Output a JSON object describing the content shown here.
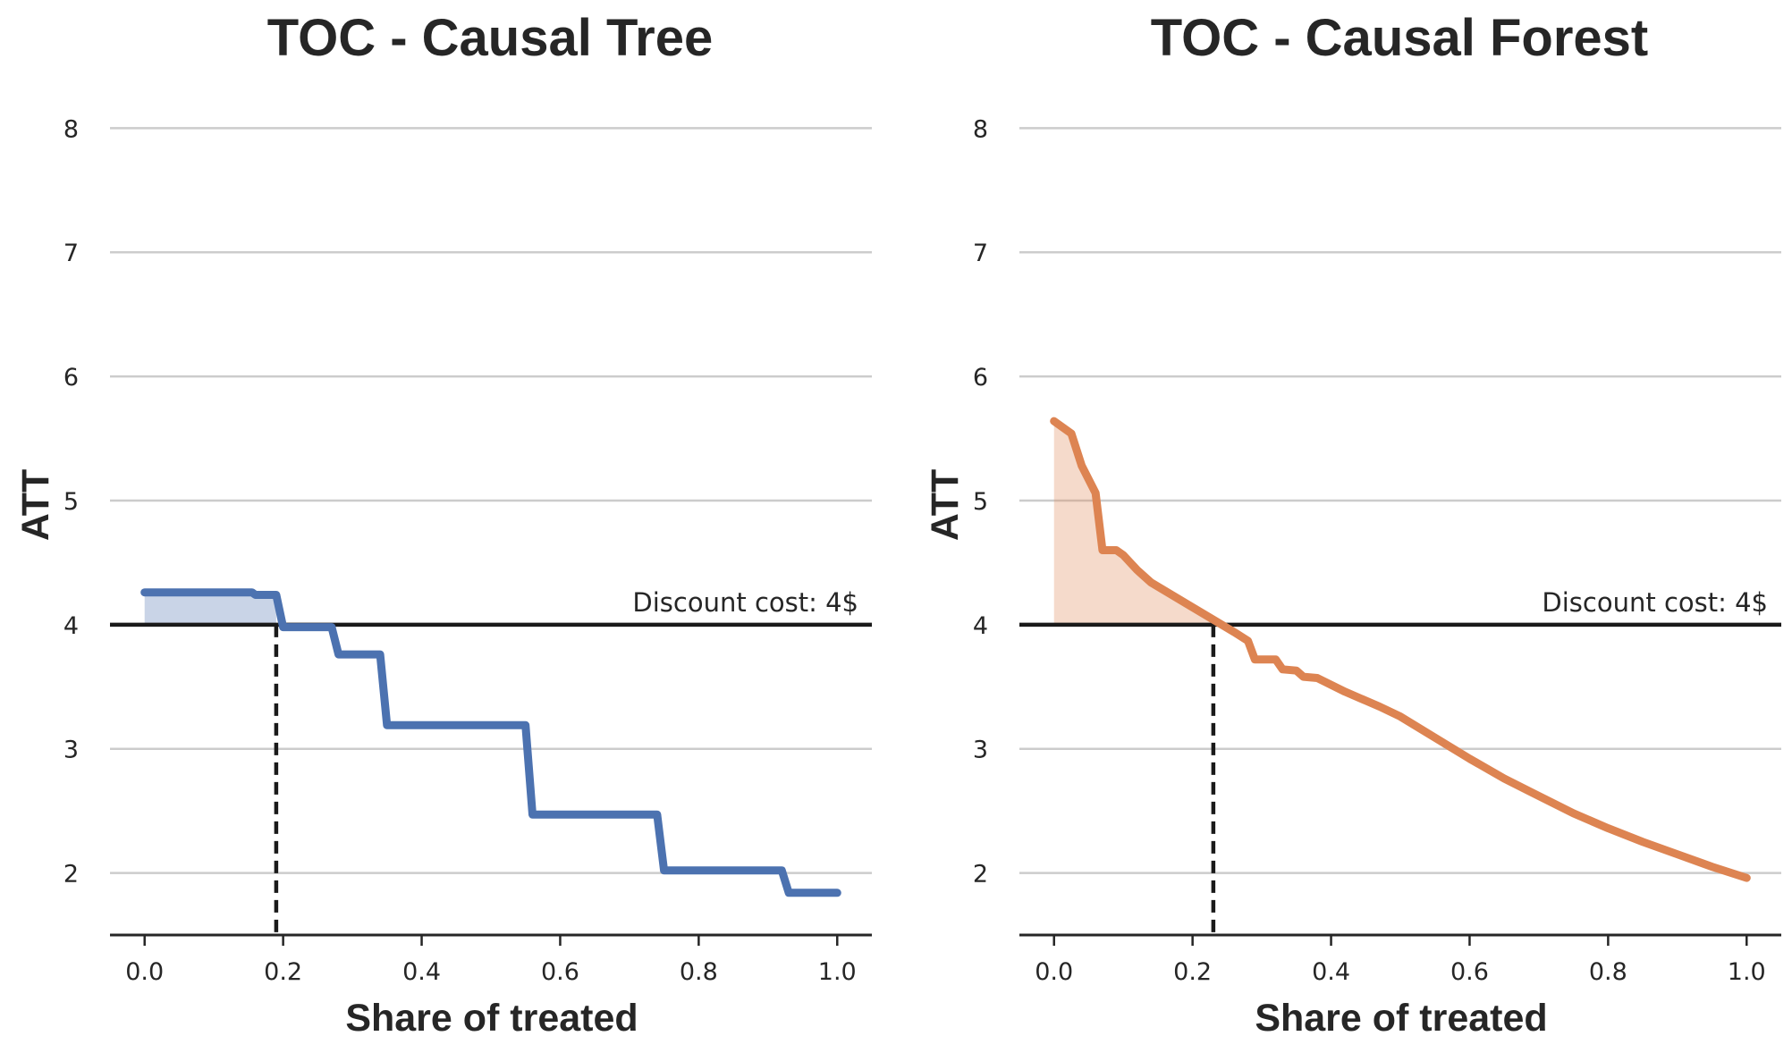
{
  "chart_data": [
    {
      "type": "line",
      "title": "TOC - Causal Tree",
      "xlabel": "Share of treated",
      "ylabel": "ATT",
      "xlim": [
        -0.05,
        1.05
      ],
      "ylim": [
        1.5,
        8.6
      ],
      "xticks": [
        "0.0",
        "0.2",
        "0.4",
        "0.6",
        "0.8",
        "1.0"
      ],
      "xtick_values": [
        0,
        0.2,
        0.4,
        0.6,
        0.8,
        1.0
      ],
      "yticks": [
        "2",
        "3",
        "4",
        "5",
        "6",
        "7",
        "8"
      ],
      "ytick_values": [
        2,
        3,
        4,
        5,
        6,
        7,
        8
      ],
      "grid": "horizontal",
      "color": "#4c72b0",
      "fill_color": "#4c72b0",
      "cost": 4,
      "annotation": "Discount cost: 4$",
      "threshold_x": 0.19,
      "x": [
        0.0,
        0.155,
        0.16,
        0.19,
        0.2,
        0.27,
        0.28,
        0.34,
        0.35,
        0.55,
        0.56,
        0.74,
        0.75,
        0.92,
        0.93,
        1.0
      ],
      "y": [
        4.26,
        4.26,
        4.24,
        4.24,
        3.98,
        3.98,
        3.76,
        3.76,
        3.19,
        3.19,
        2.47,
        2.47,
        2.02,
        2.02,
        1.84,
        1.84
      ]
    },
    {
      "type": "line",
      "title": "TOC - Causal Forest",
      "xlabel": "Share of treated",
      "ylabel": "ATT",
      "xlim": [
        -0.05,
        1.05
      ],
      "ylim": [
        1.5,
        8.6
      ],
      "xticks": [
        "0.0",
        "0.2",
        "0.4",
        "0.6",
        "0.8",
        "1.0"
      ],
      "xtick_values": [
        0,
        0.2,
        0.4,
        0.6,
        0.8,
        1.0
      ],
      "yticks": [
        "2",
        "3",
        "4",
        "5",
        "6",
        "7",
        "8"
      ],
      "ytick_values": [
        2,
        3,
        4,
        5,
        6,
        7,
        8
      ],
      "grid": "horizontal",
      "color": "#dd8452",
      "fill_color": "#dd8452",
      "cost": 4,
      "annotation": "Discount cost: 4$",
      "threshold_x": 0.23,
      "x": [
        0.0,
        0.025,
        0.04,
        0.06,
        0.07,
        0.09,
        0.1,
        0.12,
        0.14,
        0.17,
        0.2,
        0.23,
        0.26,
        0.28,
        0.29,
        0.32,
        0.33,
        0.35,
        0.36,
        0.38,
        0.42,
        0.47,
        0.5,
        0.55,
        0.6,
        0.65,
        0.7,
        0.75,
        0.8,
        0.85,
        0.9,
        0.95,
        1.0
      ],
      "y": [
        5.64,
        5.54,
        5.28,
        5.06,
        4.6,
        4.6,
        4.56,
        4.44,
        4.34,
        4.24,
        4.14,
        4.04,
        3.94,
        3.87,
        3.72,
        3.72,
        3.64,
        3.63,
        3.58,
        3.57,
        3.46,
        3.34,
        3.26,
        3.09,
        2.92,
        2.76,
        2.62,
        2.48,
        2.36,
        2.25,
        2.15,
        2.05,
        1.96
      ]
    }
  ]
}
